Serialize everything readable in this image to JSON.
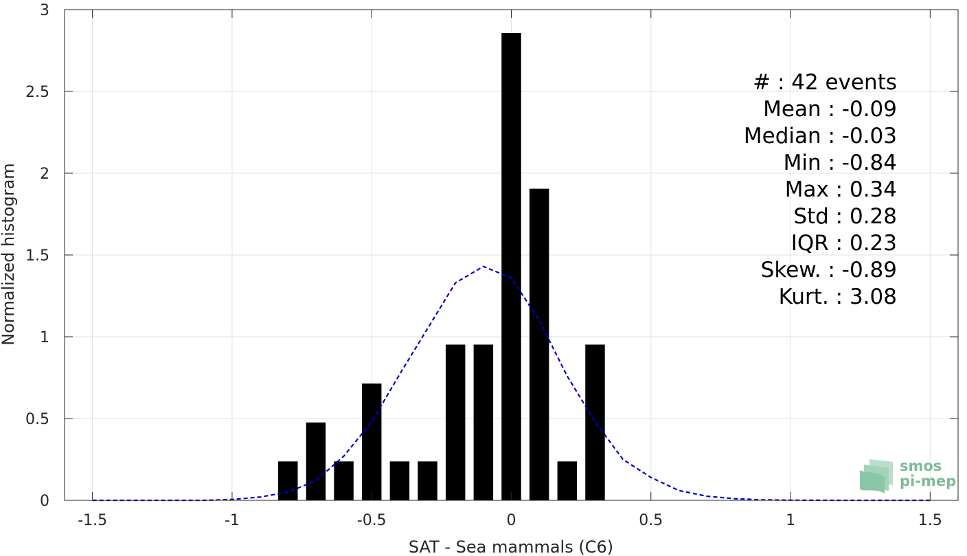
{
  "chart_data": {
    "type": "bar",
    "xlabel": "SAT - Sea mammals (C6)",
    "ylabel": "Normalized histogram",
    "xlim": [
      -1.6,
      1.6
    ],
    "ylim": [
      0,
      3
    ],
    "xticks": [
      -1.5,
      -1,
      -0.5,
      0,
      0.5,
      1,
      1.5
    ],
    "xtick_labels": [
      "-1.5",
      "-1",
      "-0.5",
      "0",
      "0.5",
      "1",
      "1.5"
    ],
    "yticks": [
      0,
      0.5,
      1,
      1.5,
      2,
      2.5,
      3
    ],
    "ytick_labels": [
      "0",
      "0.5",
      "1",
      "1.5",
      "2",
      "2.5",
      "3"
    ],
    "grid": true,
    "bar_width": 0.07,
    "bars": [
      {
        "x": -0.8,
        "y": 0.238
      },
      {
        "x": -0.7,
        "y": 0.476
      },
      {
        "x": -0.6,
        "y": 0.238
      },
      {
        "x": -0.5,
        "y": 0.714
      },
      {
        "x": -0.4,
        "y": 0.238
      },
      {
        "x": -0.3,
        "y": 0.238
      },
      {
        "x": -0.2,
        "y": 0.952
      },
      {
        "x": -0.1,
        "y": 0.952
      },
      {
        "x": 0.0,
        "y": 2.857
      },
      {
        "x": 0.1,
        "y": 1.905
      },
      {
        "x": 0.2,
        "y": 0.238
      },
      {
        "x": 0.3,
        "y": 0.952
      }
    ],
    "bar_color": "#000000",
    "fit_curve": {
      "style": "dashed",
      "color": "#0000cc",
      "x": [
        -1.5,
        -1.3,
        -1.1,
        -1.0,
        -0.9,
        -0.8,
        -0.7,
        -0.6,
        -0.5,
        -0.4,
        -0.3,
        -0.2,
        -0.1,
        0.0,
        0.1,
        0.2,
        0.3,
        0.4,
        0.5,
        0.6,
        0.7,
        0.8,
        0.9,
        1.0,
        1.2,
        1.5
      ],
      "y": [
        0.0,
        0.0,
        0.0,
        0.005,
        0.02,
        0.05,
        0.12,
        0.27,
        0.48,
        0.77,
        1.05,
        1.33,
        1.43,
        1.36,
        1.1,
        0.76,
        0.48,
        0.25,
        0.14,
        0.06,
        0.025,
        0.01,
        0.003,
        0.001,
        0.0,
        0.0
      ]
    },
    "stats": [
      {
        "label": "#  : 42 events"
      },
      {
        "label": "Mean : -0.09"
      },
      {
        "label": "Median : -0.03"
      },
      {
        "label": "Min : -0.84"
      },
      {
        "label": "Max : 0.34"
      },
      {
        "label": "Std : 0.28"
      },
      {
        "label": "IQR : 0.23"
      },
      {
        "label": "Skew. : -0.89"
      },
      {
        "label": "Kurt. : 3.08"
      }
    ]
  },
  "logo": {
    "line1": "smos",
    "line2": "pi-mep",
    "icon": "smos-pimep-logo-icon"
  }
}
